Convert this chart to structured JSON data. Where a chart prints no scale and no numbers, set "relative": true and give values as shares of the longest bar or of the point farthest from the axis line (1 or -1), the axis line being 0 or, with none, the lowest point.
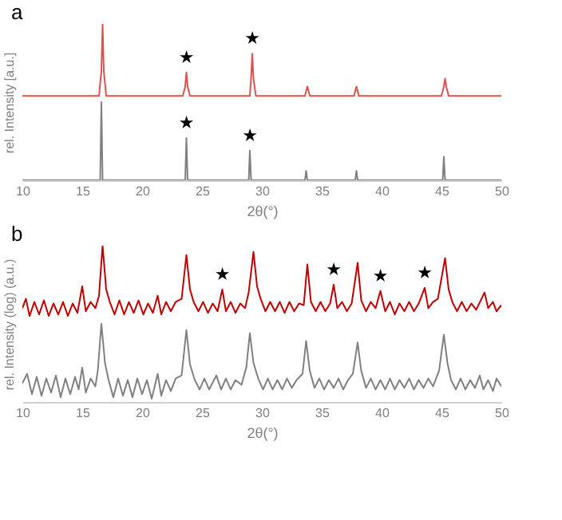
{
  "chart_data": [
    {
      "type": "line",
      "title": "a",
      "xlabel": "2θ(°)",
      "ylabel": "rel. Intensity [a.u.]",
      "relative": true,
      "xlim": [
        10,
        50
      ],
      "xticks": [
        10,
        15,
        20,
        25,
        30,
        35,
        40,
        45,
        50
      ],
      "tick_labels": "x",
      "grid": false,
      "series": [
        {
          "color": "#d9534f",
          "x": [
            10,
            16.4,
            16.6,
            16.7,
            16.8,
            17.0,
            23.4,
            23.6,
            23.7,
            23.8,
            24.0,
            29.0,
            29.1,
            29.2,
            29.3,
            29.5,
            33.6,
            33.8,
            34.0,
            37.7,
            37.9,
            38.1,
            45.0,
            45.2,
            45.3,
            45.4,
            45.6,
            50
          ],
          "values": [
            0.54,
            0.54,
            0.7,
            1.0,
            0.7,
            0.54,
            0.54,
            0.6,
            0.69,
            0.6,
            0.54,
            0.54,
            0.65,
            0.81,
            0.65,
            0.54,
            0.54,
            0.6,
            0.54,
            0.54,
            0.6,
            0.54,
            0.54,
            0.6,
            0.65,
            0.6,
            0.54,
            0.54
          ]
        },
        {
          "color": "#808080",
          "x": [
            10,
            16.5,
            16.6,
            16.7,
            23.6,
            23.7,
            23.8,
            28.9,
            29.0,
            29.1,
            33.6,
            33.7,
            33.8,
            37.8,
            37.9,
            38.0,
            45.1,
            45.2,
            45.3,
            50
          ],
          "values": [
            0,
            0,
            0.5,
            0,
            0,
            0.27,
            0,
            0,
            0.19,
            0,
            0,
            0.06,
            0,
            0,
            0.06,
            0,
            0,
            0.15,
            0,
            0
          ]
        }
      ],
      "annotations": [
        {
          "text": "★",
          "x": 23.7,
          "y": 0.69
        },
        {
          "text": "★",
          "x": 29.2,
          "y": 0.81
        },
        {
          "text": "★",
          "x": 23.7,
          "y": 0.27
        },
        {
          "text": "★",
          "x": 29.0,
          "y": 0.19
        }
      ]
    },
    {
      "type": "line",
      "title": "b",
      "xlabel": "2θ(°)",
      "ylabel": "rel. Intensity (log) (a.u.)",
      "relative": true,
      "xlim": [
        10,
        50
      ],
      "xticks": [
        10,
        15,
        20,
        25,
        30,
        35,
        40,
        45,
        50
      ],
      "tick_labels": "x",
      "grid": false,
      "series": [
        {
          "color": "#c00000",
          "x": [
            10,
            10.3,
            10.6,
            11,
            11.4,
            11.8,
            12.2,
            12.6,
            13,
            13.4,
            13.8,
            14.2,
            14.6,
            15.0,
            15.3,
            15.7,
            16.1,
            16.4,
            16.7,
            17.0,
            17.3,
            17.7,
            18.1,
            18.5,
            18.9,
            19.3,
            19.7,
            20.1,
            20.5,
            20.9,
            21.3,
            21.6,
            22.0,
            22.4,
            22.8,
            23.3,
            23.7,
            24.0,
            24.3,
            24.7,
            25.1,
            25.5,
            25.9,
            26.3,
            26.7,
            27.0,
            27.4,
            27.8,
            28.2,
            28.6,
            28.9,
            29.3,
            29.6,
            29.9,
            30.3,
            30.7,
            31.1,
            31.5,
            31.9,
            32.3,
            32.7,
            33.1,
            33.5,
            33.8,
            34.1,
            34.5,
            34.9,
            35.3,
            35.7,
            36.0,
            36.3,
            36.7,
            37.1,
            37.5,
            38.0,
            38.3,
            38.7,
            39.1,
            39.5,
            39.9,
            40.3,
            40.7,
            41.1,
            41.5,
            41.9,
            42.3,
            42.7,
            43.1,
            43.6,
            43.9,
            44.3,
            44.7,
            45.3,
            45.6,
            45.9,
            46.3,
            46.7,
            47.1,
            47.5,
            47.9,
            48.6,
            48.9,
            49.3,
            49.6,
            50
          ],
          "values": [
            0.6,
            0.66,
            0.55,
            0.64,
            0.56,
            0.65,
            0.55,
            0.63,
            0.56,
            0.64,
            0.55,
            0.63,
            0.57,
            0.74,
            0.58,
            0.64,
            0.6,
            0.68,
            1.0,
            0.72,
            0.64,
            0.56,
            0.65,
            0.56,
            0.64,
            0.57,
            0.65,
            0.56,
            0.63,
            0.57,
            0.68,
            0.56,
            0.64,
            0.58,
            0.64,
            0.66,
            0.94,
            0.72,
            0.64,
            0.58,
            0.64,
            0.57,
            0.63,
            0.58,
            0.72,
            0.58,
            0.64,
            0.57,
            0.63,
            0.6,
            0.7,
            0.96,
            0.74,
            0.66,
            0.58,
            0.64,
            0.58,
            0.64,
            0.57,
            0.64,
            0.58,
            0.63,
            0.62,
            0.88,
            0.64,
            0.58,
            0.64,
            0.58,
            0.63,
            0.75,
            0.6,
            0.64,
            0.58,
            0.63,
            0.89,
            0.65,
            0.58,
            0.64,
            0.6,
            0.71,
            0.58,
            0.64,
            0.56,
            0.63,
            0.58,
            0.64,
            0.58,
            0.63,
            0.73,
            0.6,
            0.64,
            0.66,
            0.92,
            0.72,
            0.64,
            0.58,
            0.64,
            0.58,
            0.63,
            0.59,
            0.7,
            0.6,
            0.64,
            0.58,
            0.62
          ]
        },
        {
          "color": "#808080",
          "x": [
            10,
            10.4,
            10.8,
            11.2,
            11.6,
            12,
            12.4,
            12.8,
            13.2,
            13.6,
            14,
            14.4,
            14.7,
            15,
            15.3,
            15.7,
            16.1,
            16.3,
            16.6,
            16.9,
            17.2,
            17.6,
            18,
            18.4,
            18.8,
            19.2,
            19.6,
            20,
            20.4,
            20.8,
            21.3,
            21.6,
            22,
            22.4,
            22.8,
            23.3,
            23.7,
            24,
            24.4,
            24.8,
            25.2,
            25.6,
            26.2,
            26.6,
            27,
            27.4,
            27.8,
            28.3,
            28.7,
            29,
            29.3,
            29.7,
            30.1,
            30.5,
            30.9,
            31.3,
            31.7,
            32.1,
            32.5,
            32.9,
            33.4,
            33.7,
            34,
            34.4,
            34.8,
            35.2,
            35.6,
            36,
            36.4,
            36.8,
            37.2,
            37.6,
            38,
            38.3,
            38.7,
            39.1,
            39.5,
            39.9,
            40.3,
            40.7,
            41.1,
            41.5,
            41.9,
            42.3,
            42.7,
            43.1,
            43.5,
            43.9,
            44.3,
            44.8,
            45.2,
            45.5,
            45.8,
            46.2,
            46.6,
            47,
            47.4,
            47.8,
            48.2,
            48.5,
            48.9,
            49.3,
            49.6,
            50
          ],
          "values": [
            0.12,
            0.18,
            0.05,
            0.16,
            0.04,
            0.15,
            0.06,
            0.17,
            0.03,
            0.15,
            0.05,
            0.16,
            0.08,
            0.22,
            0.06,
            0.15,
            0.1,
            0.2,
            0.5,
            0.25,
            0.14,
            0.03,
            0.15,
            0.04,
            0.14,
            0.03,
            0.15,
            0.05,
            0.14,
            0.02,
            0.18,
            0.04,
            0.14,
            0.07,
            0.15,
            0.17,
            0.46,
            0.24,
            0.14,
            0.08,
            0.15,
            0.08,
            0.17,
            0.08,
            0.15,
            0.08,
            0.14,
            0.11,
            0.22,
            0.44,
            0.25,
            0.15,
            0.08,
            0.15,
            0.08,
            0.14,
            0.08,
            0.15,
            0.09,
            0.14,
            0.18,
            0.39,
            0.2,
            0.09,
            0.15,
            0.08,
            0.14,
            0.09,
            0.15,
            0.08,
            0.14,
            0.18,
            0.38,
            0.2,
            0.09,
            0.15,
            0.08,
            0.14,
            0.08,
            0.15,
            0.08,
            0.14,
            0.09,
            0.15,
            0.08,
            0.14,
            0.09,
            0.15,
            0.1,
            0.2,
            0.43,
            0.25,
            0.14,
            0.08,
            0.15,
            0.08,
            0.14,
            0.09,
            0.17,
            0.08,
            0.14,
            0.07,
            0.15,
            0.1
          ]
        }
      ],
      "annotations": [
        {
          "text": "★",
          "x": 26.7,
          "y": 0.72
        },
        {
          "text": "★",
          "x": 36.0,
          "y": 0.75
        },
        {
          "text": "★",
          "x": 39.9,
          "y": 0.71
        },
        {
          "text": "★",
          "x": 43.6,
          "y": 0.73
        }
      ]
    }
  ]
}
